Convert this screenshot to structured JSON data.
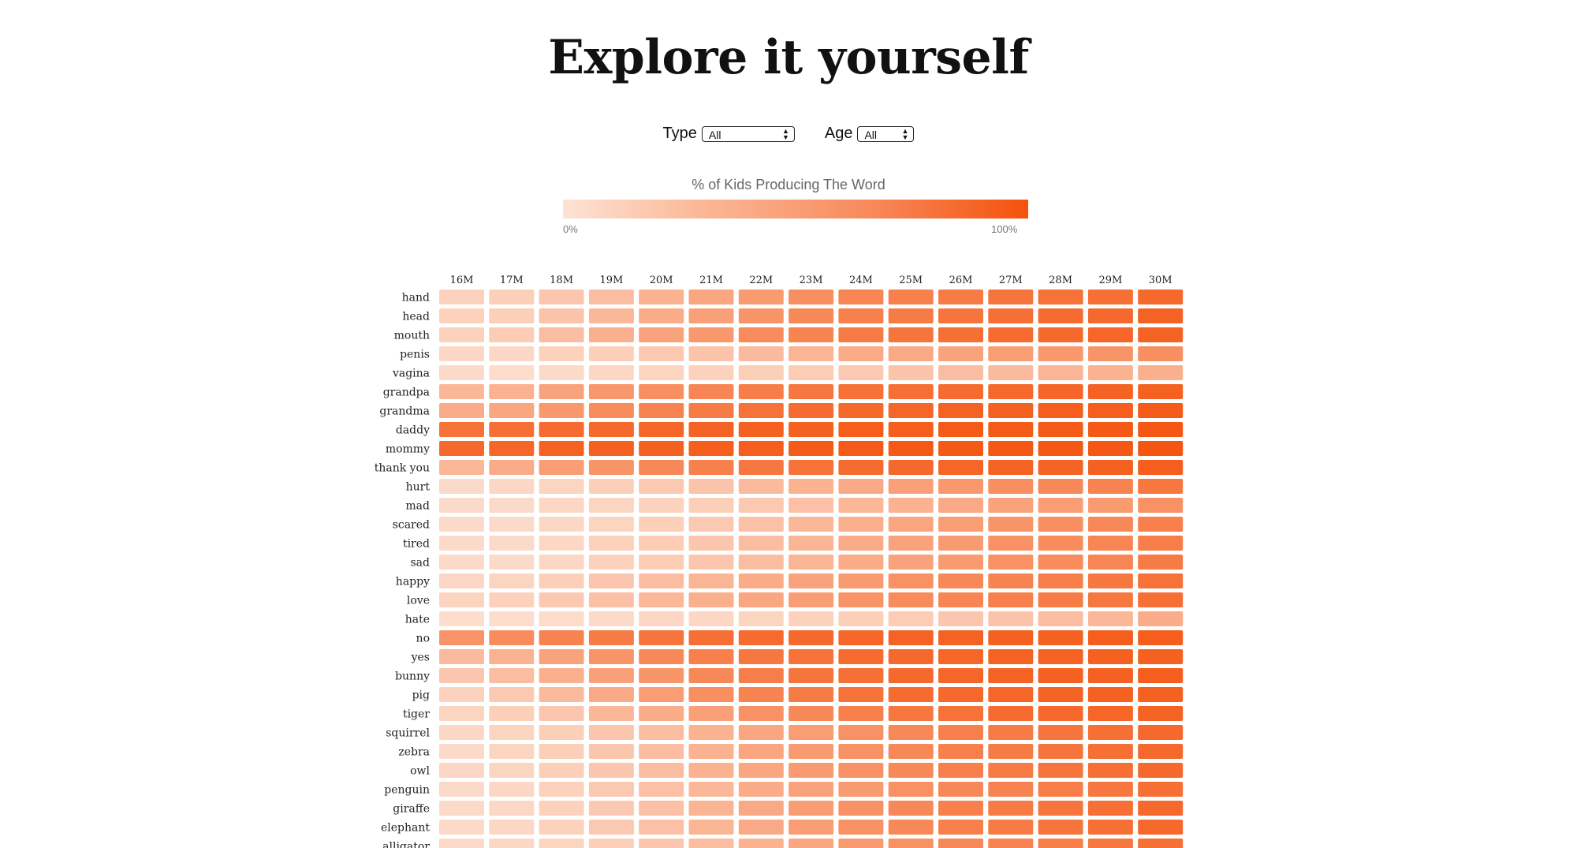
{
  "page": {
    "title": "Explore it yourself"
  },
  "filters": {
    "type": {
      "label": "Type",
      "value": "All"
    },
    "age": {
      "label": "Age",
      "value": "All"
    }
  },
  "legend": {
    "title": "% of Kids Producing The Word",
    "min_label": "0%",
    "max_label": "100%",
    "color_low": "#fde3d5",
    "color_high": "#f4520c"
  },
  "chart_data": {
    "type": "heatmap",
    "title": "% of Kids Producing The Word",
    "x": [
      "16M",
      "17M",
      "18M",
      "19M",
      "20M",
      "21M",
      "22M",
      "23M",
      "24M",
      "25M",
      "26M",
      "27M",
      "28M",
      "29M",
      "30M"
    ],
    "y": [
      "hand",
      "head",
      "mouth",
      "penis",
      "vagina",
      "grandpa",
      "grandma",
      "daddy",
      "mommy",
      "thank you",
      "hurt",
      "mad",
      "scared",
      "tired",
      "sad",
      "happy",
      "love",
      "hate",
      "no",
      "yes",
      "bunny",
      "pig",
      "tiger",
      "squirrel",
      "zebra",
      "owl",
      "penguin",
      "giraffe",
      "elephant",
      "alligator"
    ],
    "values": [
      [
        12,
        14,
        20,
        26,
        34,
        42,
        50,
        58,
        64,
        68,
        72,
        76,
        78,
        80,
        84
      ],
      [
        12,
        14,
        22,
        30,
        38,
        46,
        54,
        62,
        68,
        72,
        76,
        80,
        82,
        84,
        88
      ],
      [
        12,
        16,
        26,
        36,
        44,
        52,
        60,
        66,
        72,
        76,
        80,
        82,
        84,
        86,
        88
      ],
      [
        8,
        8,
        12,
        14,
        18,
        22,
        28,
        32,
        38,
        40,
        44,
        48,
        52,
        54,
        58
      ],
      [
        6,
        5,
        6,
        8,
        10,
        12,
        14,
        16,
        18,
        22,
        26,
        28,
        32,
        34,
        36
      ],
      [
        30,
        34,
        44,
        52,
        58,
        64,
        70,
        74,
        78,
        80,
        82,
        84,
        86,
        88,
        90
      ],
      [
        38,
        42,
        52,
        60,
        66,
        72,
        78,
        82,
        84,
        86,
        88,
        90,
        92,
        92,
        94
      ],
      [
        78,
        80,
        82,
        84,
        86,
        88,
        90,
        90,
        92,
        92,
        94,
        94,
        94,
        95,
        96
      ],
      [
        84,
        86,
        88,
        90,
        90,
        92,
        92,
        94,
        94,
        95,
        95,
        96,
        96,
        96,
        97
      ],
      [
        30,
        38,
        48,
        54,
        62,
        68,
        74,
        78,
        82,
        84,
        86,
        88,
        88,
        90,
        92
      ],
      [
        6,
        8,
        10,
        14,
        18,
        22,
        28,
        34,
        40,
        46,
        52,
        58,
        62,
        66,
        74
      ],
      [
        6,
        6,
        8,
        10,
        12,
        14,
        18,
        24,
        30,
        34,
        40,
        44,
        48,
        50,
        56
      ],
      [
        6,
        6,
        8,
        10,
        14,
        18,
        24,
        30,
        36,
        42,
        48,
        54,
        58,
        62,
        68
      ],
      [
        6,
        6,
        8,
        12,
        16,
        20,
        26,
        32,
        38,
        44,
        50,
        56,
        60,
        64,
        70
      ],
      [
        6,
        6,
        8,
        12,
        16,
        20,
        26,
        32,
        38,
        44,
        50,
        56,
        60,
        64,
        72
      ],
      [
        8,
        10,
        14,
        20,
        26,
        32,
        38,
        44,
        50,
        56,
        62,
        66,
        70,
        74,
        78
      ],
      [
        10,
        12,
        18,
        24,
        30,
        36,
        42,
        48,
        54,
        60,
        64,
        68,
        72,
        74,
        80
      ],
      [
        4,
        4,
        5,
        6,
        8,
        8,
        10,
        12,
        14,
        16,
        20,
        22,
        26,
        30,
        38
      ],
      [
        54,
        60,
        66,
        72,
        76,
        80,
        82,
        84,
        86,
        88,
        88,
        90,
        90,
        92,
        92
      ],
      [
        28,
        34,
        44,
        54,
        62,
        68,
        74,
        78,
        82,
        84,
        86,
        88,
        88,
        90,
        90
      ],
      [
        20,
        26,
        36,
        46,
        54,
        62,
        70,
        76,
        80,
        84,
        86,
        88,
        90,
        90,
        92
      ],
      [
        12,
        18,
        28,
        40,
        48,
        58,
        66,
        72,
        78,
        82,
        84,
        86,
        88,
        90,
        90
      ],
      [
        10,
        14,
        20,
        30,
        38,
        46,
        56,
        62,
        68,
        74,
        78,
        82,
        84,
        86,
        88
      ],
      [
        8,
        10,
        14,
        20,
        26,
        34,
        42,
        48,
        56,
        62,
        68,
        72,
        76,
        80,
        84
      ],
      [
        6,
        10,
        14,
        20,
        26,
        34,
        42,
        50,
        56,
        62,
        68,
        72,
        76,
        80,
        84
      ],
      [
        8,
        10,
        14,
        20,
        26,
        34,
        42,
        50,
        56,
        62,
        68,
        72,
        76,
        80,
        84
      ],
      [
        6,
        8,
        12,
        18,
        24,
        30,
        38,
        44,
        50,
        56,
        62,
        66,
        70,
        74,
        80
      ],
      [
        6,
        8,
        12,
        18,
        24,
        32,
        40,
        48,
        56,
        62,
        68,
        72,
        76,
        80,
        84
      ],
      [
        6,
        8,
        12,
        18,
        24,
        32,
        40,
        48,
        56,
        62,
        68,
        72,
        76,
        80,
        84
      ],
      [
        6,
        8,
        10,
        14,
        20,
        26,
        34,
        42,
        50,
        56,
        62,
        66,
        70,
        74,
        80
      ]
    ],
    "range": [
      0,
      100
    ]
  }
}
